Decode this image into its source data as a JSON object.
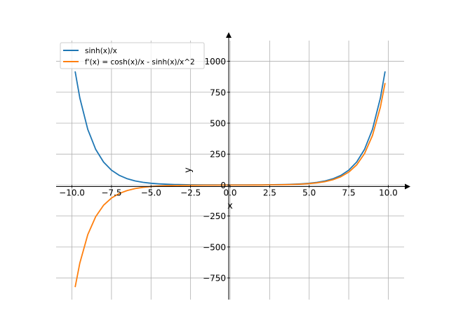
{
  "chart_data": {
    "type": "line",
    "title": "",
    "xlabel": "x",
    "ylabel": "y",
    "xlim": [
      -11.0,
      11.0
    ],
    "ylim": [
      -925,
      1235
    ],
    "grid": true,
    "legend_position": "top-left",
    "x_ticks": [
      -10.0,
      -7.5,
      -5.0,
      -2.5,
      0.0,
      2.5,
      5.0,
      7.5,
      10.0
    ],
    "x_tick_labels": [
      "−10.0",
      "−7.5",
      "−5.0",
      "−2.5",
      "0.0",
      "2.5",
      "5.0",
      "7.5",
      "10.0"
    ],
    "y_ticks": [
      -750,
      -500,
      -250,
      0,
      250,
      500,
      750,
      1000
    ],
    "y_tick_labels": [
      "−750",
      "−500",
      "−250",
      "0",
      "250",
      "500",
      "750",
      "1000"
    ],
    "series": [
      {
        "name": "sinh(x)/x",
        "color": "#1f77b4",
        "x": [
          -9.8,
          -9.5,
          -9.0,
          -8.5,
          -8.0,
          -7.5,
          -7.0,
          -6.5,
          -6.0,
          -5.5,
          -5.0,
          -4.5,
          -4.0,
          -3.5,
          -3.0,
          -2.5,
          -2.0,
          -1.5,
          -1.0,
          -0.5,
          0.0,
          0.5,
          1.0,
          1.5,
          2.0,
          2.5,
          3.0,
          3.5,
          4.0,
          4.5,
          5.0,
          5.5,
          6.0,
          6.5,
          7.0,
          7.5,
          8.0,
          8.5,
          9.0,
          9.5,
          9.8
        ],
        "y": [
          918.1,
          703.6,
          450.2,
          288.7,
          186.3,
          120.6,
          78.3,
          51.0,
          33.6,
          22.2,
          14.8,
          10.0,
          6.8,
          4.7,
          3.3,
          2.4,
          1.8,
          1.4,
          1.2,
          1.0,
          1.0,
          1.0,
          1.2,
          1.4,
          1.8,
          2.4,
          3.3,
          4.7,
          6.8,
          10.0,
          14.8,
          22.2,
          33.6,
          51.0,
          78.3,
          120.6,
          186.3,
          288.7,
          450.2,
          703.6,
          918.1
        ]
      },
      {
        "name": "f'(x) = cosh(x)/x - sinh(x)/x^2",
        "color": "#ff7f0e",
        "x": [
          -9.8,
          -9.5,
          -9.0,
          -8.5,
          -8.0,
          -7.5,
          -7.0,
          -6.5,
          -6.0,
          -5.5,
          -5.0,
          -4.5,
          -4.0,
          -3.5,
          -3.0,
          -2.5,
          -2.0,
          -1.5,
          -1.0,
          -0.5,
          0.0,
          0.5,
          1.0,
          1.5,
          2.0,
          2.5,
          3.0,
          3.5,
          4.0,
          4.5,
          5.0,
          5.5,
          6.0,
          6.5,
          7.0,
          7.5,
          8.0,
          8.5,
          9.0,
          9.5,
          9.8
        ],
        "y": [
          -824.4,
          -629.5,
          -400.2,
          -254.7,
          -163.0,
          -104.6,
          -67.1,
          -43.2,
          -28.0,
          -18.2,
          -11.9,
          -7.8,
          -5.1,
          -3.4,
          -2.2,
          -1.5,
          -0.9,
          -0.6,
          -0.3,
          -0.2,
          0.0,
          0.2,
          0.3,
          0.6,
          0.9,
          1.5,
          2.2,
          3.4,
          5.1,
          7.8,
          11.9,
          18.2,
          28.0,
          43.2,
          67.1,
          104.6,
          163.0,
          254.7,
          400.2,
          629.5,
          824.4
        ]
      }
    ]
  }
}
